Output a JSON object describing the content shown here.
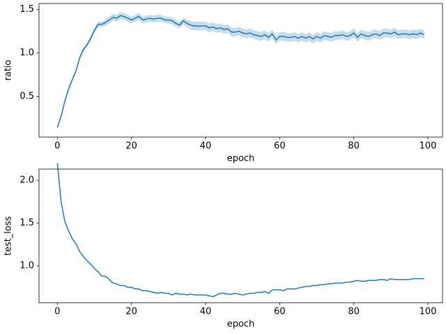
{
  "chart_data": [
    {
      "type": "line",
      "xlabel": "epoch",
      "ylabel": "ratio",
      "color": "#1f77b4",
      "band_color": "#1f77b4",
      "x": [
        0,
        1,
        2,
        3,
        4,
        5,
        6,
        7,
        8,
        9,
        10,
        11,
        12,
        13,
        14,
        15,
        16,
        17,
        18,
        19,
        20,
        21,
        22,
        23,
        24,
        25,
        26,
        27,
        28,
        29,
        30,
        31,
        32,
        33,
        34,
        35,
        36,
        37,
        38,
        39,
        40,
        41,
        42,
        43,
        44,
        45,
        46,
        47,
        48,
        49,
        50,
        51,
        52,
        53,
        54,
        55,
        56,
        57,
        58,
        59,
        60,
        61,
        62,
        63,
        64,
        65,
        66,
        67,
        68,
        69,
        70,
        71,
        72,
        73,
        74,
        75,
        76,
        77,
        78,
        79,
        80,
        81,
        82,
        83,
        84,
        85,
        86,
        87,
        88,
        89,
        90,
        91,
        92,
        93,
        94,
        95,
        96,
        97,
        98,
        99
      ],
      "values": [
        0.14,
        0.27,
        0.44,
        0.58,
        0.69,
        0.79,
        0.94,
        1.04,
        1.09,
        1.17,
        1.26,
        1.33,
        1.33,
        1.35,
        1.38,
        1.41,
        1.4,
        1.43,
        1.42,
        1.4,
        1.38,
        1.4,
        1.42,
        1.38,
        1.39,
        1.4,
        1.39,
        1.4,
        1.4,
        1.38,
        1.38,
        1.37,
        1.34,
        1.32,
        1.37,
        1.34,
        1.32,
        1.31,
        1.31,
        1.31,
        1.31,
        1.29,
        1.3,
        1.28,
        1.29,
        1.27,
        1.28,
        1.24,
        1.24,
        1.25,
        1.23,
        1.22,
        1.23,
        1.21,
        1.2,
        1.19,
        1.21,
        1.18,
        1.22,
        1.15,
        1.19,
        1.19,
        1.18,
        1.18,
        1.19,
        1.17,
        1.19,
        1.17,
        1.19,
        1.16,
        1.19,
        1.17,
        1.2,
        1.19,
        1.18,
        1.2,
        1.2,
        1.21,
        1.19,
        1.2,
        1.23,
        1.18,
        1.22,
        1.2,
        1.19,
        1.21,
        1.22,
        1.2,
        1.23,
        1.23,
        1.22,
        1.24,
        1.21,
        1.22,
        1.22,
        1.21,
        1.22,
        1.21,
        1.23,
        1.21
      ],
      "band_upper": [
        0.16,
        0.29,
        0.46,
        0.6,
        0.71,
        0.81,
        0.96,
        1.06,
        1.11,
        1.2,
        1.29,
        1.36,
        1.36,
        1.39,
        1.42,
        1.45,
        1.44,
        1.47,
        1.46,
        1.44,
        1.42,
        1.44,
        1.46,
        1.42,
        1.43,
        1.44,
        1.43,
        1.44,
        1.44,
        1.42,
        1.42,
        1.41,
        1.38,
        1.36,
        1.41,
        1.38,
        1.37,
        1.36,
        1.36,
        1.36,
        1.36,
        1.34,
        1.35,
        1.33,
        1.34,
        1.32,
        1.33,
        1.29,
        1.29,
        1.3,
        1.28,
        1.27,
        1.28,
        1.26,
        1.25,
        1.24,
        1.26,
        1.23,
        1.27,
        1.2,
        1.24,
        1.24,
        1.23,
        1.23,
        1.24,
        1.22,
        1.24,
        1.22,
        1.24,
        1.21,
        1.24,
        1.22,
        1.25,
        1.24,
        1.23,
        1.25,
        1.25,
        1.26,
        1.24,
        1.25,
        1.28,
        1.23,
        1.27,
        1.25,
        1.24,
        1.26,
        1.27,
        1.25,
        1.28,
        1.28,
        1.27,
        1.29,
        1.26,
        1.27,
        1.27,
        1.26,
        1.27,
        1.26,
        1.28,
        1.26
      ],
      "band_lower": [
        0.12,
        0.25,
        0.42,
        0.56,
        0.67,
        0.77,
        0.92,
        1.02,
        1.07,
        1.14,
        1.23,
        1.3,
        1.3,
        1.31,
        1.34,
        1.37,
        1.36,
        1.39,
        1.38,
        1.36,
        1.34,
        1.36,
        1.38,
        1.34,
        1.35,
        1.36,
        1.35,
        1.36,
        1.36,
        1.34,
        1.34,
        1.33,
        1.3,
        1.28,
        1.33,
        1.3,
        1.27,
        1.26,
        1.26,
        1.26,
        1.26,
        1.24,
        1.25,
        1.23,
        1.24,
        1.22,
        1.23,
        1.19,
        1.19,
        1.2,
        1.18,
        1.17,
        1.18,
        1.16,
        1.15,
        1.14,
        1.16,
        1.13,
        1.17,
        1.1,
        1.14,
        1.14,
        1.13,
        1.13,
        1.14,
        1.12,
        1.14,
        1.12,
        1.14,
        1.11,
        1.14,
        1.12,
        1.15,
        1.14,
        1.13,
        1.15,
        1.15,
        1.16,
        1.14,
        1.15,
        1.18,
        1.13,
        1.17,
        1.15,
        1.14,
        1.16,
        1.17,
        1.15,
        1.18,
        1.18,
        1.17,
        1.19,
        1.16,
        1.17,
        1.17,
        1.16,
        1.17,
        1.16,
        1.18,
        1.16
      ],
      "xlim": [
        -4.95,
        103.95
      ],
      "xticks": [
        0,
        20,
        40,
        60,
        80,
        100
      ],
      "ylim": [
        0.03,
        1.57
      ],
      "yticks": [
        0.5,
        {
          "value": 1,
          "label": "1.0"
        },
        1.5
      ]
    },
    {
      "type": "line",
      "xlabel": "epoch",
      "ylabel": "test_loss",
      "color": "#1f77b4",
      "x": [
        0,
        1,
        2,
        3,
        4,
        5,
        6,
        7,
        8,
        9,
        10,
        11,
        12,
        13,
        14,
        15,
        16,
        17,
        18,
        19,
        20,
        21,
        22,
        23,
        24,
        25,
        26,
        27,
        28,
        29,
        30,
        31,
        32,
        33,
        34,
        35,
        36,
        37,
        38,
        39,
        40,
        41,
        42,
        43,
        44,
        45,
        46,
        47,
        48,
        49,
        50,
        51,
        52,
        53,
        54,
        55,
        56,
        57,
        58,
        59,
        60,
        61,
        62,
        63,
        64,
        65,
        66,
        67,
        68,
        69,
        70,
        71,
        72,
        73,
        74,
        75,
        76,
        77,
        78,
        79,
        80,
        81,
        82,
        83,
        84,
        85,
        86,
        87,
        88,
        89,
        90,
        91,
        92,
        93,
        94,
        95,
        96,
        97,
        98,
        99
      ],
      "values": [
        2.2,
        1.75,
        1.52,
        1.41,
        1.32,
        1.26,
        1.17,
        1.11,
        1.06,
        1.02,
        0.97,
        0.93,
        0.88,
        0.88,
        0.84,
        0.8,
        0.79,
        0.77,
        0.77,
        0.75,
        0.75,
        0.73,
        0.73,
        0.71,
        0.71,
        0.7,
        0.69,
        0.68,
        0.69,
        0.68,
        0.68,
        0.66,
        0.68,
        0.67,
        0.67,
        0.66,
        0.67,
        0.66,
        0.66,
        0.66,
        0.66,
        0.65,
        0.64,
        0.66,
        0.68,
        0.68,
        0.67,
        0.67,
        0.68,
        0.67,
        0.66,
        0.67,
        0.68,
        0.68,
        0.69,
        0.69,
        0.7,
        0.68,
        0.72,
        0.72,
        0.72,
        0.71,
        0.73,
        0.73,
        0.73,
        0.74,
        0.75,
        0.76,
        0.76,
        0.77,
        0.77,
        0.78,
        0.78,
        0.79,
        0.79,
        0.8,
        0.8,
        0.8,
        0.81,
        0.81,
        0.82,
        0.83,
        0.82,
        0.82,
        0.83,
        0.83,
        0.83,
        0.84,
        0.84,
        0.83,
        0.85,
        0.84,
        0.84,
        0.84,
        0.84,
        0.84,
        0.85,
        0.85,
        0.85,
        0.85
      ],
      "xlim": [
        -4.95,
        103.95
      ],
      "xticks": [
        0,
        20,
        40,
        60,
        80,
        100
      ],
      "ylim": [
        0.57,
        2.13
      ],
      "yticks": [
        {
          "value": 1,
          "label": "1.0"
        },
        1.5,
        {
          "value": 2,
          "label": "2.0"
        }
      ]
    }
  ]
}
